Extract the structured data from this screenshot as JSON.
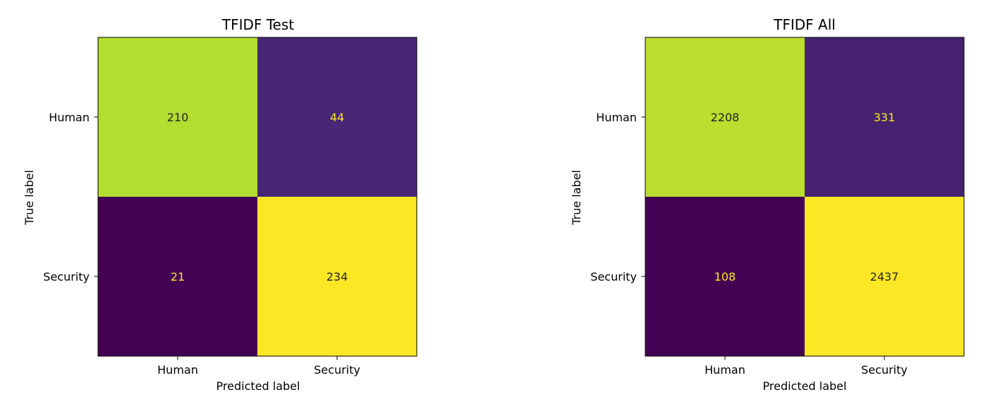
{
  "chart_data": [
    {
      "type": "heatmap",
      "title": "TFIDF Test",
      "xlabel": "Predicted label",
      "ylabel": "True label",
      "x_categories": [
        "Human",
        "Security"
      ],
      "y_categories": [
        "Human",
        "Security"
      ],
      "values": [
        [
          210,
          44
        ],
        [
          21,
          234
        ]
      ],
      "colormap": "viridis",
      "grid": false,
      "colorbar": false
    },
    {
      "type": "heatmap",
      "title": "TFIDF All",
      "xlabel": "Predicted label",
      "ylabel": "True label",
      "x_categories": [
        "Human",
        "Security"
      ],
      "y_categories": [
        "Human",
        "Security"
      ],
      "values": [
        [
          2208,
          331
        ],
        [
          108,
          2437
        ]
      ],
      "colormap": "viridis",
      "grid": false,
      "colorbar": false
    }
  ]
}
